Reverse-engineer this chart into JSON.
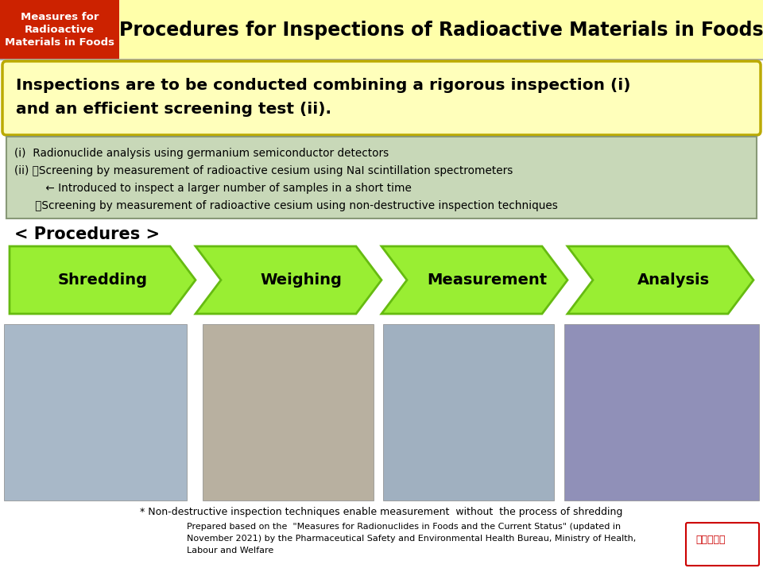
{
  "title": "Procedures for Inspections of Radioactive Materials in Foods",
  "header_box_text": "Measures for\nRadioactive\nMaterials in Foods",
  "header_box_color": "#CC2200",
  "header_bg_color": "#FFFFAA",
  "main_bg_color": "#FFFFFF",
  "yellow_box_text_line1": "Inspections are to be conducted combining a rigorous inspection (i)",
  "yellow_box_text_line2": "and an efficient screening test (ii).",
  "yellow_box_color": "#FFFFBB",
  "yellow_box_border": "#BBAA00",
  "green_box_color": "#C8D8B8",
  "green_box_border": "#889977",
  "green_box_lines": [
    "(i)  Radionuclide analysis using germanium semiconductor detectors",
    "(ii) ・Screening by measurement of radioactive cesium using NaI scintillation spectrometers",
    "         ← Introduced to inspect a larger number of samples in a short time",
    "      ・Screening by measurement of radioactive cesium using non-destructive inspection techniques"
  ],
  "procedures_label": "< Procedures >",
  "arrow_steps": [
    "Shredding",
    "Weighing",
    "Measurement",
    "Analysis"
  ],
  "arrow_color": "#99EE33",
  "arrow_border": "#66BB11",
  "arrow_text_color": "#000000",
  "note_text": "* Non-destructive inspection techniques enable measurement  without  the process of shredding",
  "footer_text": "Prepared based on the  \"Measures for Radionuclides in Foods and the Current Status\" (updated in\nNovember 2021) by the Pharmaceutical Safety and Environmental Health Bureau, Ministry of Health,\nLabour and Welfare",
  "fig_width": 9.6,
  "fig_height": 7.2,
  "dpi": 100
}
